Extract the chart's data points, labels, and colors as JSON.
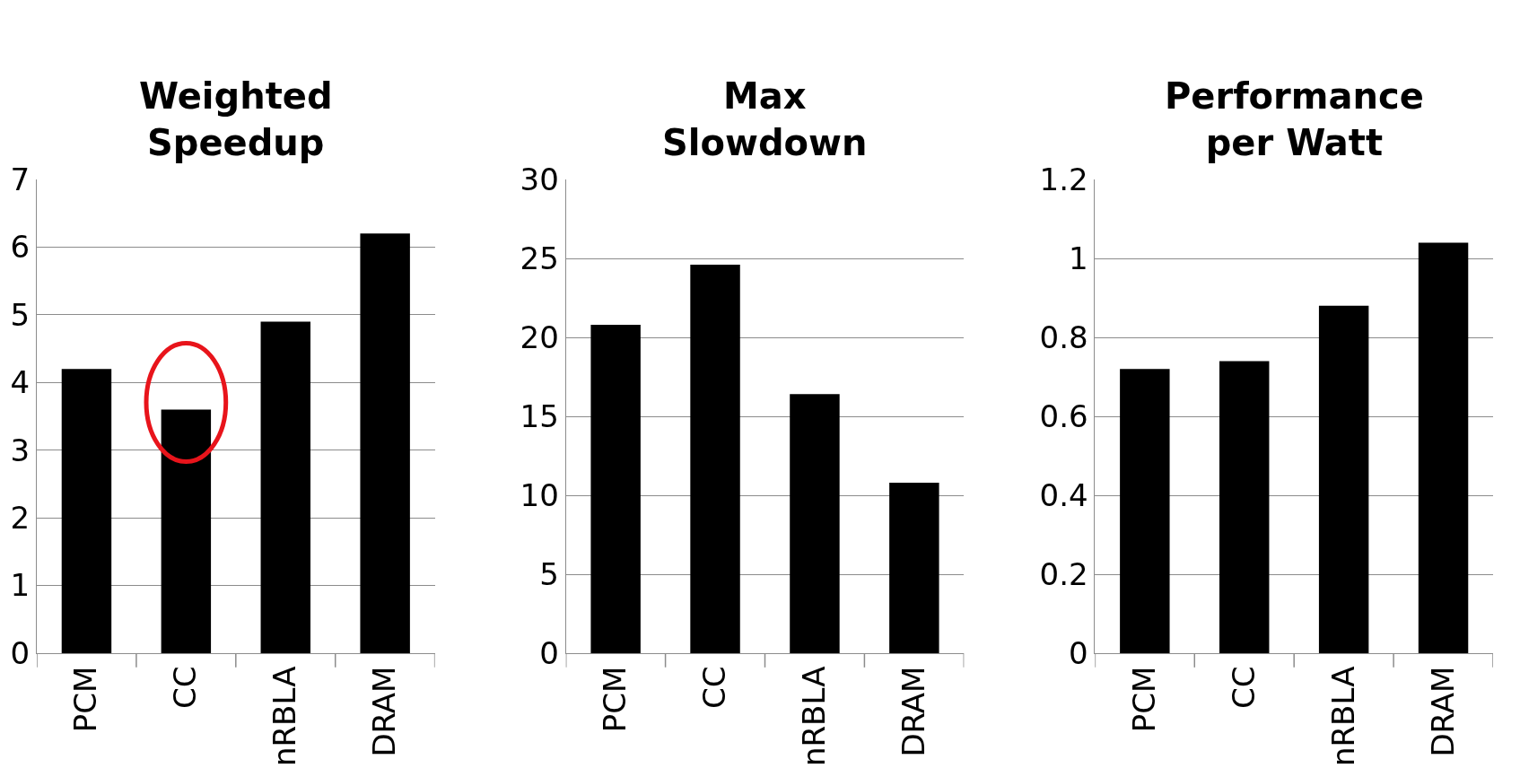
{
  "chart_data": [
    {
      "type": "bar",
      "title": "Weighted Speedup",
      "categories": [
        "PCM",
        "CC",
        "nRBLA",
        "DRAM"
      ],
      "values": [
        4.2,
        3.6,
        4.9,
        6.2
      ],
      "color": "#000000",
      "ylim": [
        0,
        7
      ],
      "yticks": [
        0,
        1,
        2,
        3,
        4,
        5,
        6,
        7
      ],
      "grid": "y"
    },
    {
      "type": "bar",
      "title": "Max Slowdown",
      "categories": [
        "PCM",
        "CC",
        "nRBLA",
        "DRAM"
      ],
      "values": [
        20.8,
        24.6,
        16.4,
        10.8
      ],
      "color": "#000000",
      "ylim": [
        0,
        30
      ],
      "yticks": [
        0,
        5,
        10,
        15,
        20,
        25,
        30
      ],
      "grid": "y"
    },
    {
      "type": "bar",
      "title": "Performance per Watt",
      "categories": [
        "PCM",
        "CC",
        "nRBLA",
        "DRAM"
      ],
      "values": [
        0.72,
        0.74,
        0.88,
        1.04
      ],
      "color": "#000000",
      "ylim": [
        0,
        1.2
      ],
      "yticks": [
        0,
        0.2,
        0.4,
        0.6,
        0.8,
        1,
        1.2
      ],
      "grid": "y"
    }
  ]
}
